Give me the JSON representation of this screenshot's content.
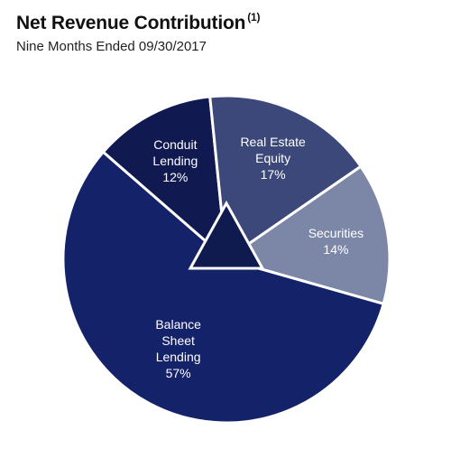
{
  "chart_data": {
    "type": "pie",
    "title": "Net Revenue Contribution",
    "title_note": "(1)",
    "subtitle": "Nine Months Ended 09/30/2017",
    "categories": [
      "Conduit Lending",
      "Real Estate Equity",
      "Securities",
      "Balance Sheet Lending"
    ],
    "values": [
      12,
      17,
      14,
      57
    ],
    "value_labels": [
      "12%",
      "17%",
      "14%",
      "57%"
    ],
    "colors": [
      "#101a50",
      "#3c4879",
      "#7c87a7",
      "#14226a"
    ]
  }
}
